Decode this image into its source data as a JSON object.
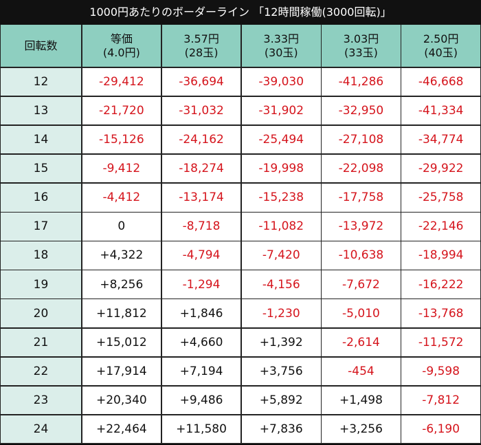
{
  "header": {
    "title": "1000円あたりのボーダーライン 「12時間稼働(3000回転)」"
  },
  "table": {
    "columns": [
      [
        "回転数"
      ],
      [
        "等価",
        "(4.0円)"
      ],
      [
        "3.57円",
        "(28玉)"
      ],
      [
        "3.33円",
        "(30玉)"
      ],
      [
        "3.03円",
        "(33玉)"
      ],
      [
        "2.50円",
        "(40玉)"
      ]
    ],
    "rows": [
      [
        "12",
        "-29,412",
        "-36,694",
        "-39,030",
        "-41,286",
        "-46,668"
      ],
      [
        "13",
        "-21,720",
        "-31,032",
        "-31,902",
        "-32,950",
        "-41,334"
      ],
      [
        "14",
        "-15,126",
        "-24,162",
        "-25,494",
        "-27,108",
        "-34,774"
      ],
      [
        "15",
        "-9,412",
        "-18,274",
        "-19,998",
        "-22,098",
        "-29,922"
      ],
      [
        "16",
        "-4,412",
        "-13,174",
        "-15,238",
        "-17,758",
        "-25,758"
      ],
      [
        "17",
        "0",
        "-8,718",
        "-11,082",
        "-13,972",
        "-22,146"
      ],
      [
        "18",
        "+4,322",
        "-4,794",
        "-7,420",
        "-10,638",
        "-18,994"
      ],
      [
        "19",
        "+8,256",
        "-1,294",
        "-4,156",
        "-7,672",
        "-16,222"
      ],
      [
        "20",
        "+11,812",
        "+1,846",
        "-1,230",
        "-5,010",
        "-13,768"
      ],
      [
        "21",
        "+15,012",
        "+4,660",
        "+1,392",
        "-2,614",
        "-11,572"
      ],
      [
        "22",
        "+17,914",
        "+7,194",
        "+3,756",
        "-454",
        "-9,598"
      ],
      [
        "23",
        "+20,340",
        "+9,486",
        "+5,892",
        "+1,498",
        "-7,812"
      ],
      [
        "24",
        "+22,464",
        "+11,580",
        "+7,836",
        "+3,256",
        "-6,190"
      ]
    ]
  }
}
